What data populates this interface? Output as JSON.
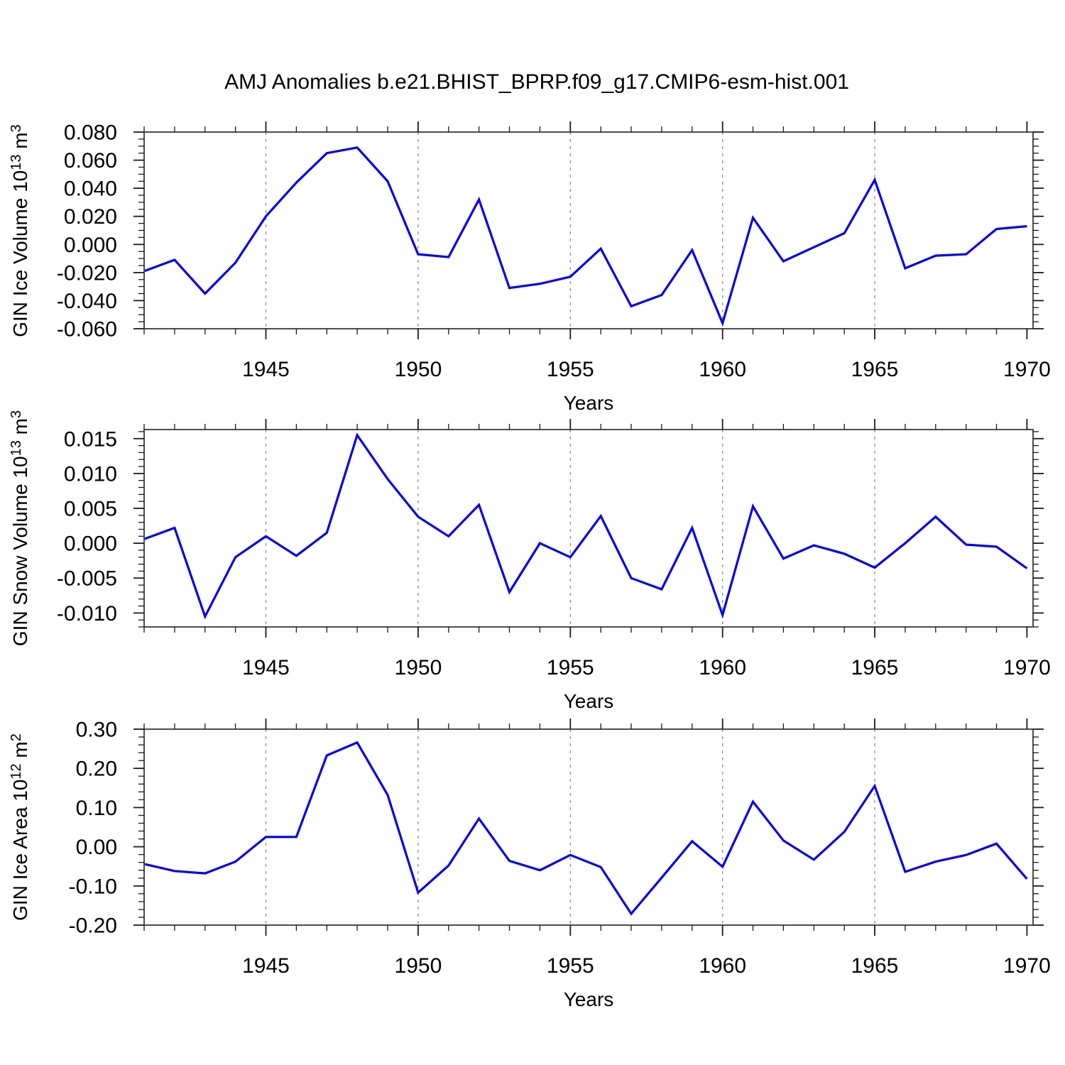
{
  "title": "AMJ Anomalies b.e21.BHIST_BPRP.f09_g17.CMIP6-esm-hist.001",
  "colors": {
    "line": "#0000ee",
    "frame": "#4d4d4d",
    "tick": "#1a1a1a",
    "grid": "#8c8c8c",
    "text": "#000000",
    "background": "#ffffff"
  },
  "chart_data": [
    {
      "id": "ice-volume",
      "type": "line",
      "ylabel": "GIN Ice Volume 10^{13} m^{3}",
      "xlabel": "Years",
      "x": [
        1941,
        1942,
        1943,
        1944,
        1945,
        1946,
        1947,
        1948,
        1949,
        1950,
        1951,
        1952,
        1953,
        1954,
        1955,
        1956,
        1957,
        1958,
        1959,
        1960,
        1961,
        1962,
        1963,
        1964,
        1965,
        1966,
        1967,
        1968,
        1969,
        1970
      ],
      "series": [
        {
          "name": "GIN Ice Volume anomaly",
          "color": "#0000ee",
          "values": [
            -0.019,
            -0.011,
            -0.035,
            -0.013,
            0.02,
            0.044,
            0.065,
            0.069,
            0.045,
            -0.007,
            -0.009,
            0.032,
            -0.031,
            -0.028,
            -0.023,
            -0.003,
            -0.044,
            -0.036,
            -0.004,
            -0.056,
            0.019,
            -0.012,
            -0.002,
            0.008,
            0.046,
            -0.017,
            -0.008,
            -0.007,
            0.011,
            0.013
          ]
        }
      ],
      "ylim": [
        -0.06,
        0.08
      ],
      "yticks": [
        0.08,
        0.06,
        0.04,
        0.02,
        0.0,
        -0.02,
        -0.04,
        -0.06
      ],
      "ytick_labels": [
        "0.080",
        "0.060",
        "0.040",
        "0.020",
        "0.000",
        "-0.020",
        "-0.040",
        "-0.060"
      ],
      "yminor_step": 0.005,
      "xlim": [
        1941,
        1970.2
      ],
      "xticks_major": [
        1945,
        1950,
        1955,
        1960,
        1965,
        1970
      ],
      "xtick_labels": [
        "1945",
        "1950",
        "1955",
        "1960",
        "1965",
        "1970"
      ],
      "grid_x": [
        1945,
        1950,
        1955,
        1960,
        1965
      ],
      "grid": "vertical-dashed",
      "legend": "none"
    },
    {
      "id": "snow-volume",
      "type": "line",
      "ylabel": "GIN Snow Volume 10^{13} m^{3}",
      "xlabel": "Years",
      "x": [
        1941,
        1942,
        1943,
        1944,
        1945,
        1946,
        1947,
        1948,
        1949,
        1950,
        1951,
        1952,
        1953,
        1954,
        1955,
        1956,
        1957,
        1958,
        1959,
        1960,
        1961,
        1962,
        1963,
        1964,
        1965,
        1966,
        1967,
        1968,
        1969,
        1970
      ],
      "series": [
        {
          "name": "GIN Snow Volume anomaly",
          "color": "#0000ee",
          "values": [
            0.0006,
            0.0022,
            -0.0105,
            -0.002,
            0.001,
            -0.0018,
            0.0015,
            0.0155,
            0.0092,
            0.0038,
            0.001,
            0.0055,
            -0.007,
            0.0,
            -0.002,
            0.0039,
            -0.005,
            -0.0066,
            0.0022,
            -0.0103,
            0.0053,
            -0.0022,
            -0.0003,
            -0.0015,
            -0.0035,
            0.0,
            0.0038,
            -0.0002,
            -0.0005,
            -0.0036
          ]
        }
      ],
      "ylim": [
        -0.012,
        0.0163
      ],
      "yticks": [
        0.015,
        0.01,
        0.005,
        0.0,
        -0.005,
        -0.01
      ],
      "ytick_labels": [
        "0.015",
        "0.010",
        "0.005",
        "0.000",
        "-0.005",
        "-0.010"
      ],
      "yminor_step": 0.001,
      "xlim": [
        1941,
        1970.2
      ],
      "xticks_major": [
        1945,
        1950,
        1955,
        1960,
        1965,
        1970
      ],
      "xtick_labels": [
        "1945",
        "1950",
        "1955",
        "1960",
        "1965",
        "1970"
      ],
      "grid_x": [
        1945,
        1950,
        1955,
        1960,
        1965
      ],
      "grid": "vertical-dashed",
      "legend": "none"
    },
    {
      "id": "ice-area",
      "type": "line",
      "ylabel": "GIN Ice Area 10^{12} m^{2}",
      "xlabel": "Years",
      "x": [
        1941,
        1942,
        1943,
        1944,
        1945,
        1946,
        1947,
        1948,
        1949,
        1950,
        1951,
        1952,
        1953,
        1954,
        1955,
        1956,
        1957,
        1958,
        1959,
        1960,
        1961,
        1962,
        1963,
        1964,
        1965,
        1966,
        1967,
        1968,
        1969,
        1970
      ],
      "series": [
        {
          "name": "GIN Ice Area anomaly",
          "color": "#0000ee",
          "values": [
            -0.044,
            -0.062,
            -0.068,
            -0.038,
            0.025,
            0.025,
            0.233,
            0.266,
            0.132,
            -0.117,
            -0.048,
            0.072,
            -0.036,
            -0.06,
            -0.021,
            -0.052,
            -0.171,
            -0.079,
            0.014,
            -0.051,
            0.115,
            0.016,
            -0.033,
            0.038,
            0.155,
            -0.064,
            -0.038,
            -0.021,
            0.008,
            -0.082
          ]
        }
      ],
      "ylim": [
        -0.2,
        0.3
      ],
      "yticks": [
        0.3,
        0.2,
        0.1,
        0.0,
        -0.1,
        -0.2
      ],
      "ytick_labels": [
        "0.30",
        "0.20",
        "0.10",
        "0.00",
        "-0.10",
        "-0.20"
      ],
      "yminor_step": 0.02,
      "xlim": [
        1941,
        1970.2
      ],
      "xticks_major": [
        1945,
        1950,
        1955,
        1960,
        1965,
        1970
      ],
      "xtick_labels": [
        "1945",
        "1950",
        "1955",
        "1960",
        "1965",
        "1970"
      ],
      "grid_x": [
        1945,
        1950,
        1955,
        1960,
        1965
      ],
      "grid": "vertical-dashed",
      "legend": "none"
    }
  ]
}
